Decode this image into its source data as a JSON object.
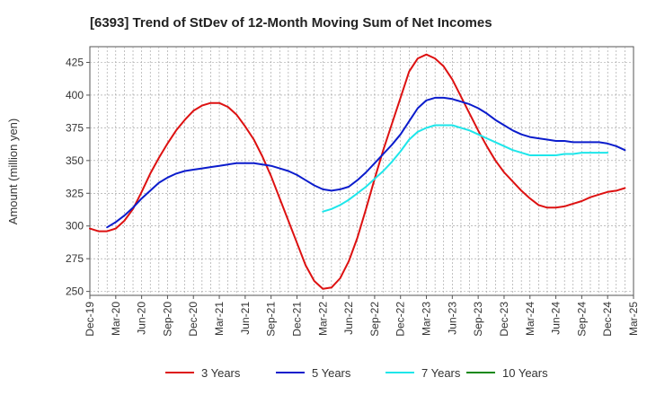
{
  "chart_data": {
    "type": "line",
    "title": "[6393]  Trend of StDev of 12-Month Moving Sum of Net Incomes",
    "ylabel": "Amount (million yen)",
    "xlabel": "",
    "ylim": [
      247,
      437
    ],
    "yticks": [
      250,
      275,
      300,
      325,
      350,
      375,
      400,
      425
    ],
    "x_labels": [
      "Dec-19",
      "Mar-20",
      "Jun-20",
      "Sep-20",
      "Dec-20",
      "Mar-21",
      "Jun-21",
      "Sep-21",
      "Dec-21",
      "Mar-22",
      "Jun-22",
      "Sep-22",
      "Dec-22",
      "Mar-23",
      "Jun-23",
      "Sep-23",
      "Dec-23",
      "Mar-24",
      "Jun-24",
      "Sep-24",
      "Dec-24",
      "Mar-25"
    ],
    "grid": true,
    "legend_position": "bottom",
    "series": [
      {
        "name": "3 Years",
        "color": "#dd1111",
        "start_index": 0,
        "values": [
          298,
          296,
          296,
          298,
          304,
          313,
          326,
          340,
          352,
          363,
          373,
          381,
          388,
          392,
          394,
          394,
          391,
          385,
          376,
          366,
          353,
          338,
          321,
          304,
          287,
          270,
          258,
          252,
          253,
          260,
          273,
          291,
          313,
          336,
          358,
          378,
          398,
          418,
          428,
          431,
          428,
          422,
          412,
          399,
          386,
          373,
          361,
          350,
          341,
          334,
          327,
          321,
          316,
          314,
          314,
          315,
          317,
          319,
          322,
          324,
          326,
          327,
          329
        ]
      },
      {
        "name": "5 Years",
        "color": "#0b1ccc",
        "start_index": 2,
        "values": [
          299,
          303,
          308,
          314,
          321,
          327,
          333,
          337,
          340,
          342,
          343,
          344,
          345,
          346,
          347,
          348,
          348,
          348,
          347,
          346,
          344,
          342,
          339,
          335,
          331,
          328,
          327,
          328,
          330,
          335,
          341,
          348,
          355,
          362,
          370,
          380,
          390,
          396,
          398,
          398,
          397,
          395,
          393,
          390,
          386,
          381,
          377,
          373,
          370,
          368,
          367,
          366,
          365,
          365,
          364,
          364,
          364,
          364,
          363,
          361,
          358
        ]
      },
      {
        "name": "7 Years",
        "color": "#1ee6ea",
        "start_index": 27,
        "values": [
          311,
          313,
          316,
          320,
          325,
          330,
          336,
          342,
          349,
          357,
          366,
          372,
          375,
          377,
          377,
          377,
          375,
          373,
          370,
          367,
          364,
          361,
          358,
          356,
          354,
          354,
          354,
          354,
          355,
          355,
          356,
          356,
          356,
          356
        ]
      },
      {
        "name": "10 Years",
        "color": "#118811",
        "start_index": 0,
        "values": []
      }
    ]
  }
}
